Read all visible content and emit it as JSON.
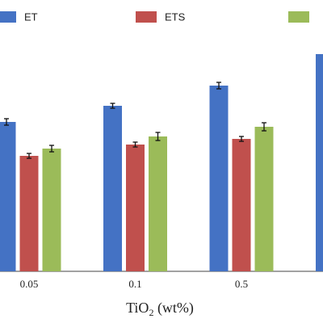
{
  "chart_data": {
    "type": "bar",
    "categories": [
      "0.05",
      "0.1",
      "0.5",
      null
    ],
    "x_label_parts": [
      "TiO",
      "2",
      " (wt%)"
    ],
    "series": [
      {
        "name": "ET",
        "color": "#4472c4",
        "values": [
          185,
          205,
          230,
          269
        ],
        "errors": [
          4,
          3,
          4,
          null
        ]
      },
      {
        "name": "ETS",
        "color": "#c0504d",
        "values": [
          143,
          157,
          164,
          null
        ],
        "errors": [
          3,
          3,
          3,
          null
        ]
      },
      {
        "name": null,
        "color": "#9bbb59",
        "values": [
          152,
          167,
          179,
          null
        ],
        "errors": [
          4,
          5,
          5,
          null
        ]
      }
    ],
    "ylim": [
      0,
      336
    ]
  }
}
